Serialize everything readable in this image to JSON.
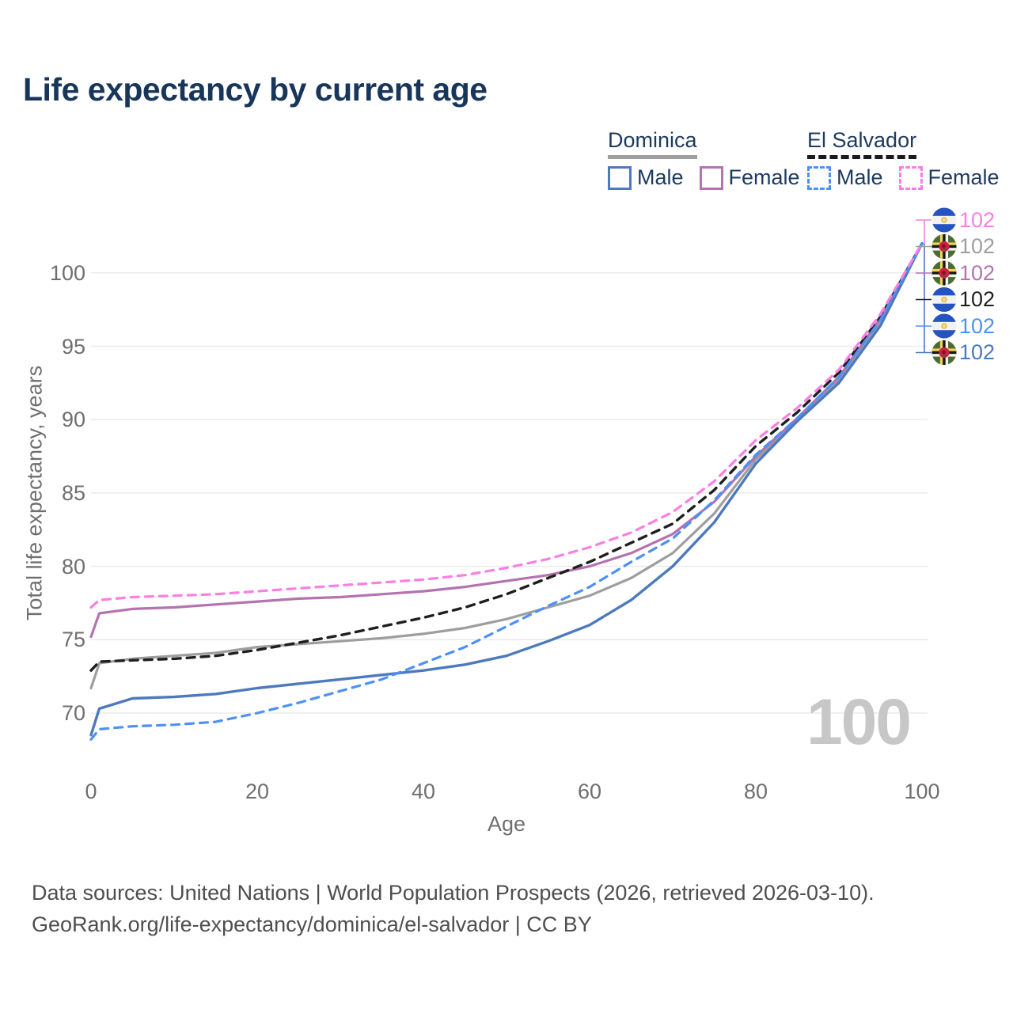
{
  "title": "Life expectancy by current age",
  "watermark": "100",
  "legend": {
    "groups": [
      {
        "name": "Dominica",
        "line_style": "solid",
        "underline_color": "#9e9e9e",
        "items": [
          {
            "label": "Male",
            "color": "#4d79be"
          },
          {
            "label": "Female",
            "color": "#b472b0"
          }
        ]
      },
      {
        "name": "El Salvador",
        "line_style": "dashed",
        "underline_color": "#1a1a1a",
        "items": [
          {
            "label": "Male",
            "color": "#4d90f8"
          },
          {
            "label": "Female",
            "color": "#fb7ee2"
          }
        ]
      }
    ]
  },
  "chart_data": {
    "type": "line",
    "title": "Life expectancy by current age",
    "xlabel": "Age",
    "ylabel": "Total life expectancy, years",
    "xlim": [
      0,
      100
    ],
    "ylim": [
      68,
      103
    ],
    "x_ticks": [
      0,
      20,
      40,
      60,
      80,
      100
    ],
    "y_ticks": [
      70,
      75,
      80,
      85,
      90,
      95,
      100
    ],
    "grid": "horizontal",
    "x": [
      0,
      1,
      5,
      10,
      15,
      20,
      25,
      30,
      35,
      40,
      45,
      50,
      55,
      60,
      65,
      70,
      75,
      80,
      85,
      90,
      95,
      100
    ],
    "series": [
      {
        "name": "Dominica - Both sexes",
        "country": "Dominica",
        "sex": "both",
        "color": "#9e9e9e",
        "dash": "solid",
        "width": 3.2,
        "values": [
          71.7,
          73.4,
          73.7,
          73.9,
          74.1,
          74.5,
          74.7,
          74.9,
          75.1,
          75.4,
          75.8,
          76.4,
          77.2,
          78.0,
          79.2,
          80.9,
          83.6,
          87.3,
          89.9,
          92.7,
          96.6,
          102.0
        ]
      },
      {
        "name": "Dominica - Female",
        "country": "Dominica",
        "sex": "female",
        "color": "#b472b0",
        "dash": "solid",
        "width": 3.2,
        "values": [
          75.2,
          76.8,
          77.1,
          77.2,
          77.4,
          77.6,
          77.8,
          77.9,
          78.1,
          78.3,
          78.6,
          79.0,
          79.4,
          80.0,
          80.9,
          82.2,
          84.4,
          87.5,
          90.1,
          92.9,
          96.9,
          102.0
        ]
      },
      {
        "name": "Dominica - Male",
        "country": "Dominica",
        "sex": "male",
        "color": "#4d79be",
        "dash": "solid",
        "width": 3.4,
        "values": [
          68.5,
          70.3,
          71.0,
          71.1,
          71.3,
          71.7,
          72.0,
          72.3,
          72.6,
          72.9,
          73.3,
          73.9,
          74.9,
          76.0,
          77.7,
          80.0,
          83.0,
          87.0,
          89.9,
          92.5,
          96.4,
          102.0
        ]
      },
      {
        "name": "El Salvador - Both sexes",
        "country": "El Salvador",
        "sex": "both",
        "color": "#1f1f1f",
        "dash": "dashed",
        "width": 3.4,
        "values": [
          72.9,
          73.5,
          73.6,
          73.7,
          73.9,
          74.3,
          74.8,
          75.3,
          75.9,
          76.5,
          77.2,
          78.1,
          79.2,
          80.3,
          81.6,
          82.9,
          85.2,
          88.2,
          90.5,
          93.2,
          97.0,
          102.0
        ]
      },
      {
        "name": "El Salvador - Male",
        "country": "El Salvador",
        "sex": "male",
        "color": "#4d90f8",
        "dash": "dashed",
        "width": 3.2,
        "values": [
          68.2,
          68.9,
          69.1,
          69.2,
          69.4,
          70.0,
          70.7,
          71.5,
          72.3,
          73.4,
          74.5,
          75.9,
          77.3,
          78.6,
          80.3,
          81.9,
          84.5,
          87.6,
          90.1,
          92.9,
          96.8,
          102.0
        ]
      },
      {
        "name": "El Salvador - Female",
        "country": "El Salvador",
        "sex": "female",
        "color": "#fb7ee2",
        "dash": "dashed",
        "width": 3.2,
        "values": [
          77.2,
          77.7,
          77.9,
          78.0,
          78.1,
          78.3,
          78.5,
          78.7,
          78.9,
          79.1,
          79.4,
          79.9,
          80.5,
          81.3,
          82.3,
          83.7,
          85.8,
          88.6,
          90.8,
          93.4,
          97.2,
          102.0
        ]
      }
    ],
    "end_labels": [
      {
        "flag": "el-salvador",
        "label": "102",
        "color": "#fb7ee2"
      },
      {
        "flag": "dominica",
        "label": "102",
        "color": "#9e9e9e"
      },
      {
        "flag": "dominica",
        "label": "102",
        "color": "#b472b0"
      },
      {
        "flag": "el-salvador",
        "label": "102",
        "color": "#1f1f1f"
      },
      {
        "flag": "el-salvador",
        "label": "102",
        "color": "#4d90f8"
      },
      {
        "flag": "dominica",
        "label": "102",
        "color": "#4d79be"
      }
    ],
    "legend_position": "top-right"
  },
  "footer": {
    "line1": "Data sources: United Nations | World Population Prospects (2026, retrieved 2026-03-10).",
    "line2": "GeoRank.org/life-expectancy/dominica/el-salvador | CC BY"
  }
}
